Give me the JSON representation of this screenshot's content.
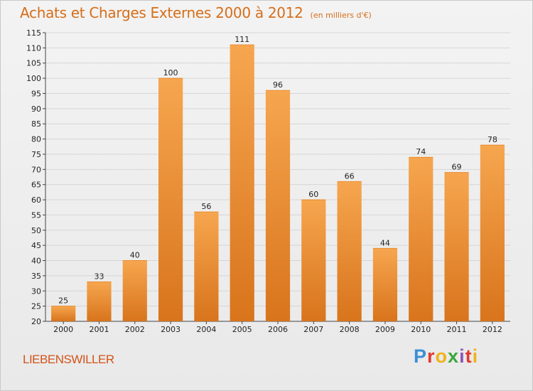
{
  "header": {
    "title": "Achats et Charges Externes 2000 à 2012",
    "unit": "(en milliers d'€)"
  },
  "footer": {
    "commune": "LIEBENSWILLER",
    "logo_letters": [
      "P",
      "r",
      "o",
      "x",
      "i",
      "t",
      "i"
    ],
    "logo_colors": [
      "#3a8fd6",
      "#e03a2f",
      "#f2b21b",
      "#3aa83a",
      "#8c56b8",
      "#e03a2f",
      "#f2b21b"
    ]
  },
  "colors": {
    "bar_top": "#f6a64f",
    "bar_bottom": "#d8741c",
    "title": "#d66e19",
    "grid": "#d6d6d6"
  },
  "chart_data": {
    "type": "bar",
    "categories": [
      "2000",
      "2001",
      "2002",
      "2003",
      "2004",
      "2005",
      "2006",
      "2007",
      "2008",
      "2009",
      "2010",
      "2011",
      "2012"
    ],
    "values": [
      25,
      33,
      40,
      100,
      56,
      111,
      96,
      60,
      66,
      44,
      74,
      69,
      78
    ],
    "ylim": [
      20,
      115
    ],
    "yticks": [
      20,
      25,
      30,
      35,
      40,
      45,
      50,
      55,
      60,
      65,
      70,
      75,
      80,
      85,
      90,
      95,
      100,
      105,
      110,
      115
    ],
    "xlabel": "",
    "ylabel": "",
    "grid": true
  }
}
